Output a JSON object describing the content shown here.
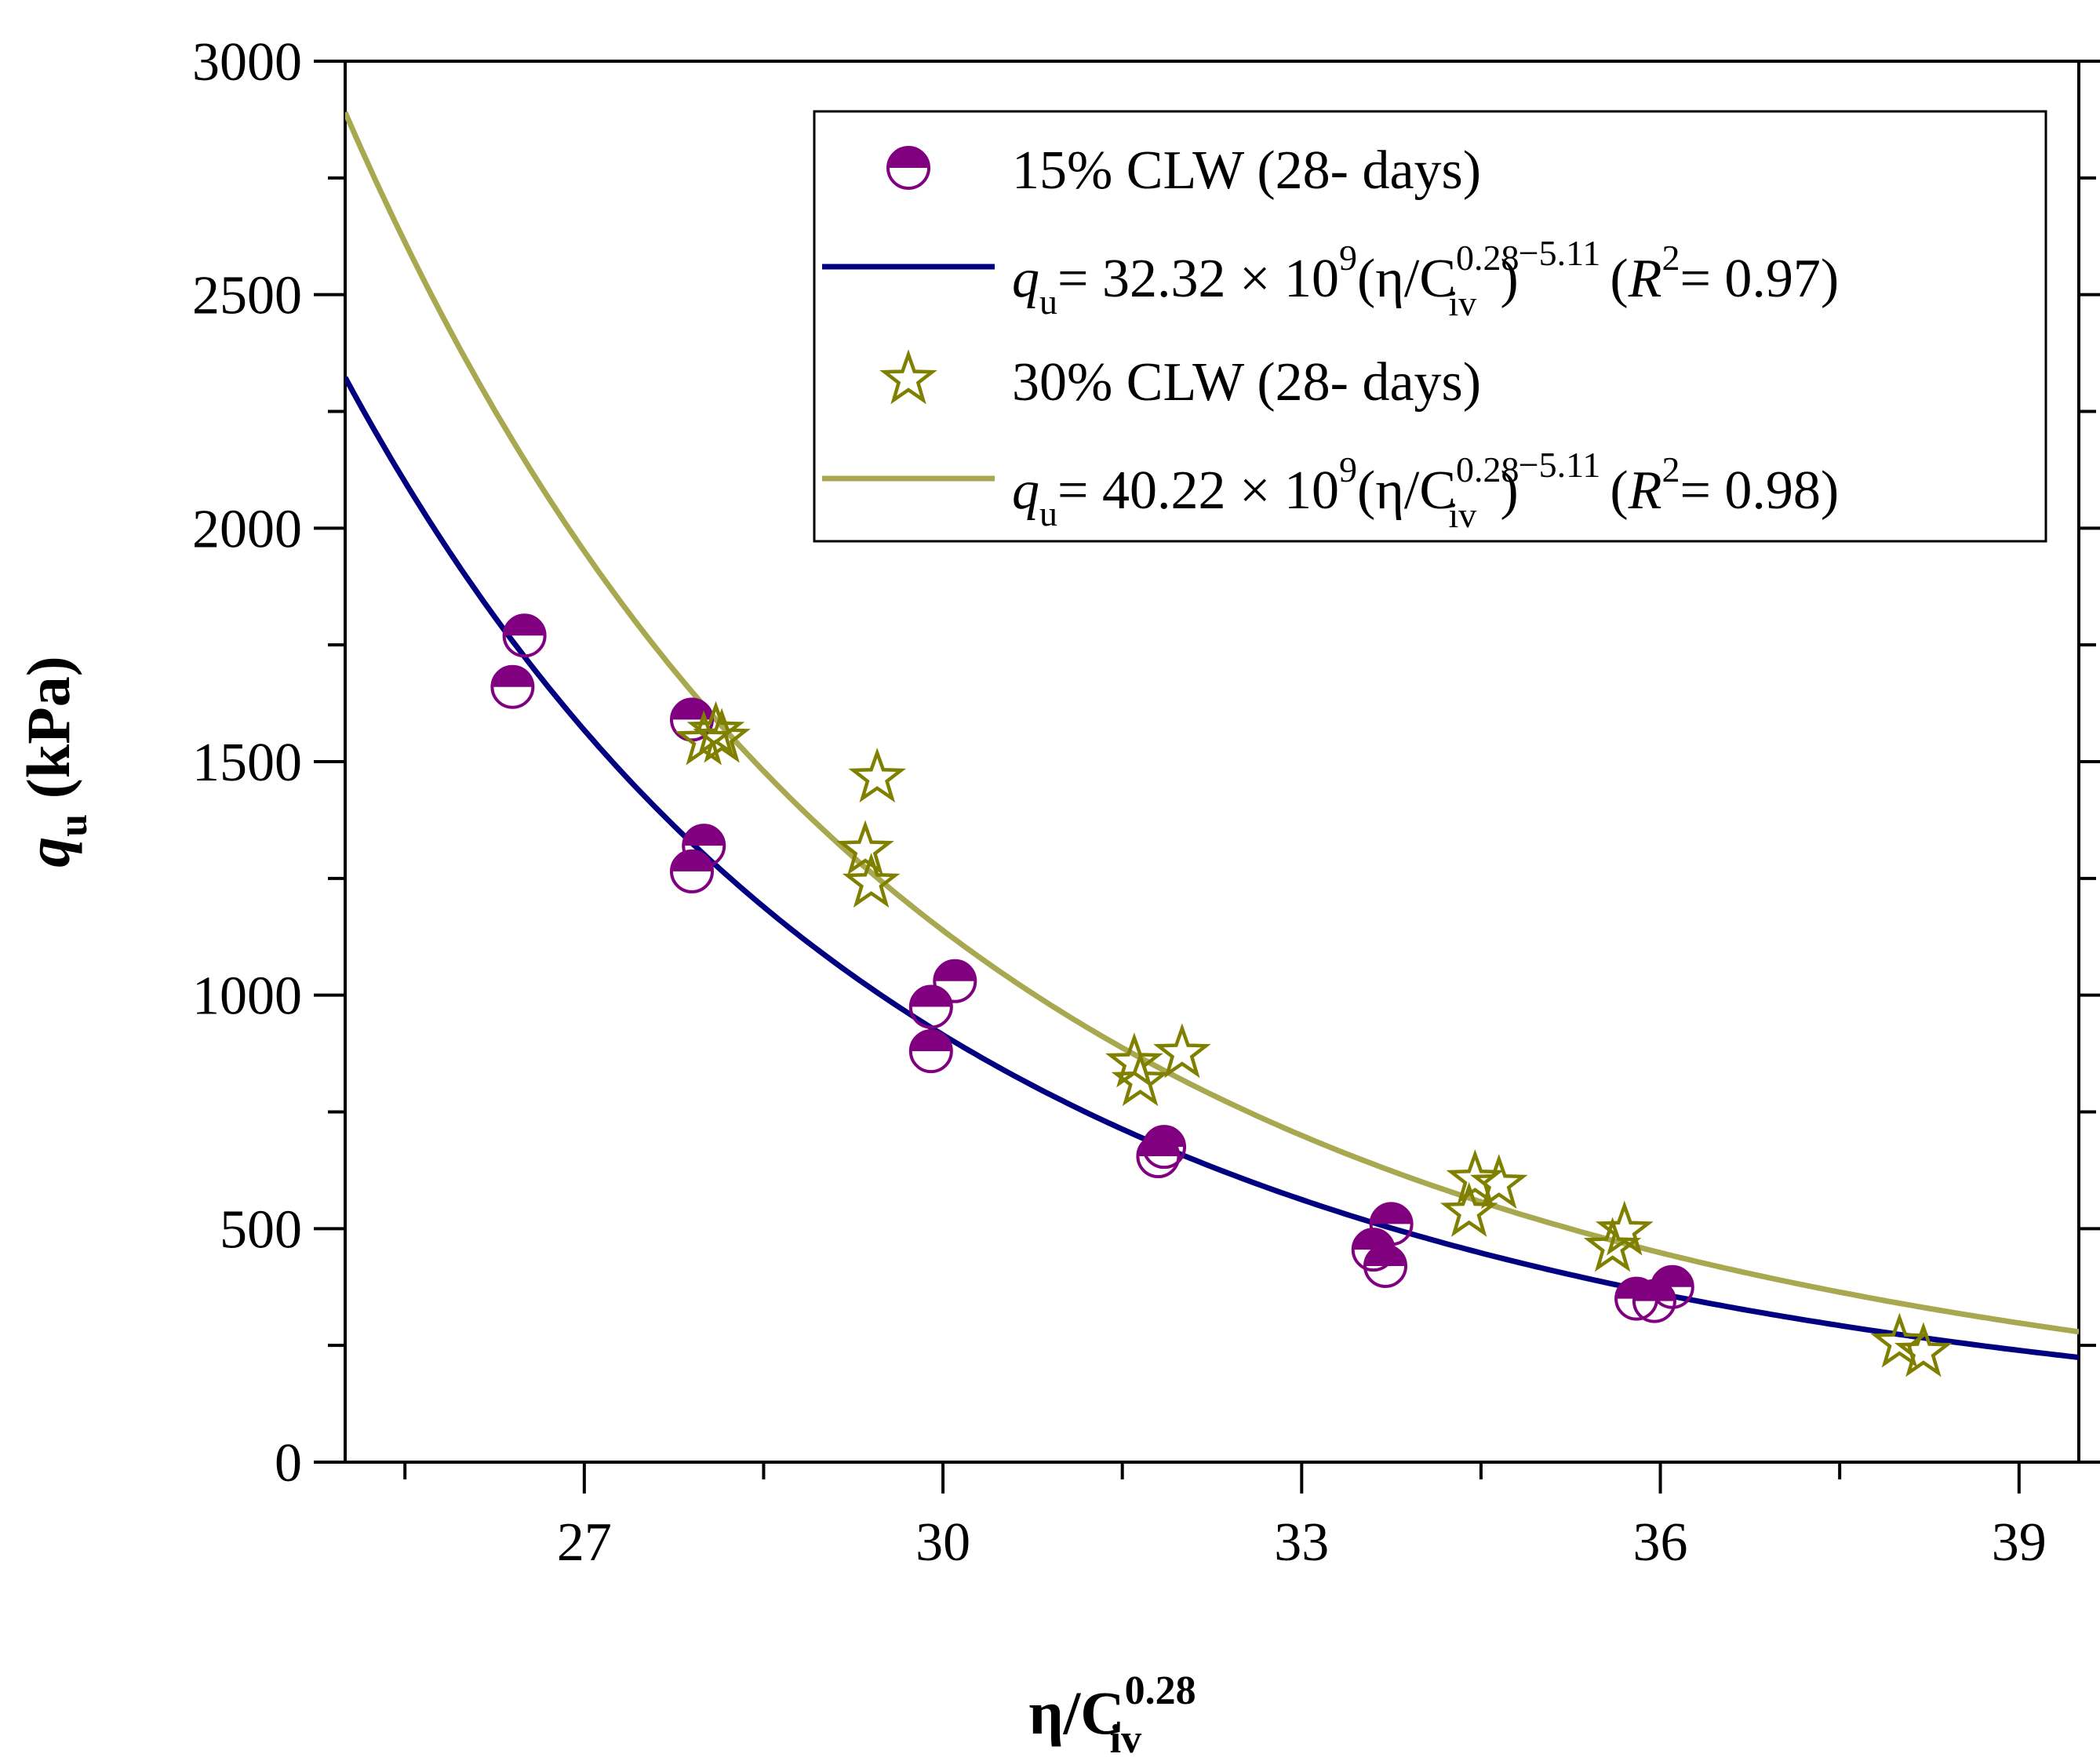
{
  "chart_data": {
    "type": "scatter",
    "title": "",
    "xlabel": {
      "base": "η/C",
      "sub": "iv",
      "sup": "0.28"
    },
    "ylabel": {
      "base": "q",
      "sub": "u",
      "unit": "(kPa)"
    },
    "xlim": [
      25,
      39.5
    ],
    "ylim": [
      0,
      3000
    ],
    "x_ticks": [
      27,
      30,
      33,
      36,
      39
    ],
    "x_tick_labels": [
      "27",
      "30",
      "33",
      "36",
      "39"
    ],
    "y_ticks": [
      0,
      500,
      1000,
      1500,
      2000,
      2500,
      3000
    ],
    "y_tick_labels": [
      "0",
      "500",
      "1000",
      "1500",
      "2000",
      "2500",
      "3000"
    ],
    "legend_position": "top-right",
    "series": [
      {
        "name": "15% CLW (28- days)",
        "kind": "points",
        "marker": "half-circle",
        "color": "#800080",
        "points": [
          [
            26.4,
            1660
          ],
          [
            26.5,
            1770
          ],
          [
            27.9,
            1265
          ],
          [
            28.0,
            1320
          ],
          [
            27.9,
            1590
          ],
          [
            29.9,
            880
          ],
          [
            29.9,
            975
          ],
          [
            30.1,
            1030
          ],
          [
            31.8,
            655
          ],
          [
            31.85,
            675
          ],
          [
            33.6,
            455
          ],
          [
            33.7,
            420
          ],
          [
            33.75,
            510
          ],
          [
            35.8,
            350
          ],
          [
            35.95,
            345
          ],
          [
            36.1,
            375
          ]
        ]
      },
      {
        "name": "q_u= 32.32 × 10^9(η/C_iv^0.28)^−5.11 (R^2= 0.97)",
        "kind": "fit",
        "coef": 32320000000.0,
        "exp": -5.11,
        "color": "#000080",
        "legend_label": {
          "prefix": "= 32.32 × 10",
          "pow": "9",
          "mid": "(η/C",
          "sup": "0.28",
          "sub": "iv",
          "exp": "−5.11",
          "r2": "= 0.97)"
        }
      },
      {
        "name": "30% CLW (28- days)",
        "kind": "points",
        "marker": "star",
        "color": "#808000",
        "points": [
          [
            28.0,
            1545
          ],
          [
            28.1,
            1565
          ],
          [
            28.15,
            1550
          ],
          [
            29.35,
            1310
          ],
          [
            29.4,
            1240
          ],
          [
            29.45,
            1465
          ],
          [
            31.6,
            855
          ],
          [
            31.65,
            815
          ],
          [
            32.0,
            875
          ],
          [
            34.4,
            535
          ],
          [
            34.45,
            605
          ],
          [
            34.65,
            595
          ],
          [
            35.6,
            460
          ],
          [
            35.7,
            495
          ],
          [
            38.0,
            255
          ],
          [
            38.2,
            235
          ]
        ]
      },
      {
        "name": "q_u= 40.22 × 10^9(η/C_iv^0.28)^−5.11 (R^2= 0.98)",
        "kind": "fit",
        "coef": 40220000000.0,
        "exp": -5.11,
        "color": "#A8A850",
        "legend_label": {
          "prefix": "= 40.22 × 10",
          "pow": "9",
          "mid": "(η/C",
          "sup": "0.28",
          "sub": "iv",
          "exp": "−5.11",
          "r2": "= 0.98)"
        }
      }
    ],
    "legend": {
      "items": [
        {
          "label": "15% CLW (28- days)"
        },
        {
          "label": "q_u= 32.32 × 10^9(η/C_iv^0.28)^−5.11 (R^2= 0.97)"
        },
        {
          "label": "30% CLW (28- days)"
        },
        {
          "label": "q_u= 40.22 × 10^9(η/C_iv^0.28)^−5.11 (R^2= 0.98)"
        }
      ]
    }
  },
  "legend_text": {
    "s1": "15% CLW (28- days)",
    "s3": "30% CLW (28- days)",
    "q": "q",
    "u": "u",
    "R": "R",
    "R_pow": "2",
    "open_paren": "("
  },
  "axes": {
    "x_title": {
      "base": "η/C",
      "sub": "iv",
      "sup": "0.28"
    },
    "y_title": {
      "base": "q",
      "sub": "u",
      "unit": " (kPa)"
    }
  }
}
